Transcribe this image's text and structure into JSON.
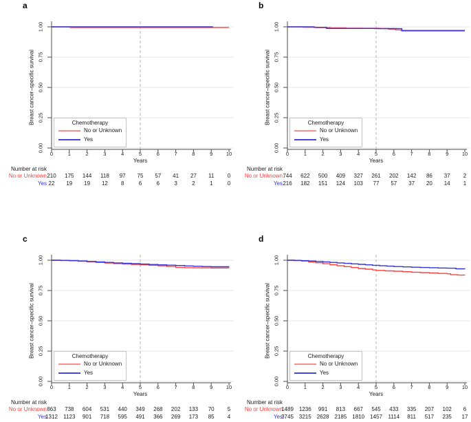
{
  "figure_title": "",
  "accent_colors": {
    "red": "#FF4040",
    "blue": "#3232DC",
    "grid": "#e4e4e4",
    "axis": "#4d4d4d",
    "dashed": "#b5b5b5"
  },
  "chart_data": [
    {
      "type": "line",
      "panel_label": "a",
      "xlabel": "Years",
      "ylabel": "Breast cancer–specific survival",
      "xlim": [
        0,
        10
      ],
      "ylim": [
        0,
        1
      ],
      "xticks": [
        0,
        1,
        2,
        3,
        4,
        5,
        6,
        7,
        8,
        9,
        10
      ],
      "ytick_values": [
        1.0,
        0.75,
        0.5,
        0.25,
        0.0
      ],
      "ytick_labels": [
        "1.00",
        "0.75",
        "0.50",
        "0.25",
        "0.00"
      ],
      "grid": "horizontal",
      "reference_line_x": 5,
      "legend": {
        "title": "Chemotherapy",
        "position": "inside-bottom-left"
      },
      "series": [
        {
          "name": "No or Unknown",
          "color": "#FF4040",
          "legend_color": "#FF8C8C",
          "step": true,
          "points": [
            [
              0,
              1
            ],
            [
              1.05,
              0.995
            ],
            [
              10,
              0.995
            ]
          ]
        },
        {
          "name": "Yes",
          "color": "#3232DC",
          "legend_color": "#4545E0",
          "step": true,
          "points": [
            [
              0,
              1
            ],
            [
              9.1,
              1
            ]
          ]
        }
      ],
      "number_at_risk": {
        "header": "Number at risk",
        "times": [
          0,
          1,
          2,
          3,
          4,
          5,
          6,
          7,
          8,
          9,
          10
        ],
        "rows": [
          {
            "label": "No or Unknown",
            "color": "#FF4040",
            "values": [
              210,
              175,
              144,
              118,
              97,
              75,
              57,
              41,
              27,
              11,
              0
            ]
          },
          {
            "label": "Yes",
            "color": "#3232DC",
            "values": [
              22,
              19,
              19,
              12,
              8,
              6,
              6,
              3,
              2,
              1,
              0
            ]
          }
        ]
      }
    },
    {
      "type": "line",
      "panel_label": "b",
      "xlabel": "Years",
      "ylabel": "Breast cancer–specific survival",
      "xlim": [
        0,
        10
      ],
      "ylim": [
        0,
        1
      ],
      "xticks": [
        0,
        1,
        2,
        3,
        4,
        5,
        6,
        7,
        8,
        9,
        10
      ],
      "ytick_values": [
        1.0,
        0.75,
        0.5,
        0.25,
        0.0
      ],
      "ytick_labels": [
        "1.00",
        "0.75",
        "0.50",
        "0.25",
        "0.00"
      ],
      "grid": "horizontal",
      "reference_line_x": 5,
      "legend": {
        "title": "Chemotherapy",
        "position": "inside-bottom-left"
      },
      "series": [
        {
          "name": "No or Unknown",
          "color": "#FF4040",
          "legend_color": "#FF8C8C",
          "step": true,
          "points": [
            [
              0,
              1
            ],
            [
              0.9,
              0.997
            ],
            [
              1.6,
              0.994
            ],
            [
              2.4,
              0.991
            ],
            [
              3.3,
              0.989
            ],
            [
              4.2,
              0.988
            ],
            [
              5.2,
              0.986
            ],
            [
              5.7,
              0.981
            ],
            [
              6.1,
              0.975
            ],
            [
              6.4,
              0.971
            ],
            [
              10,
              0.971
            ]
          ]
        },
        {
          "name": "Yes",
          "color": "#3232DC",
          "legend_color": "#4545E0",
          "step": true,
          "points": [
            [
              0,
              1
            ],
            [
              1.5,
              0.996
            ],
            [
              2.2,
              0.987
            ],
            [
              4.9,
              0.986
            ],
            [
              6.2,
              0.985
            ],
            [
              6.45,
              0.967
            ],
            [
              10,
              0.967
            ]
          ]
        }
      ],
      "number_at_risk": {
        "header": "Number at risk",
        "times": [
          0,
          1,
          2,
          3,
          4,
          5,
          6,
          7,
          8,
          9,
          10
        ],
        "rows": [
          {
            "label": "No or Unknown",
            "color": "#FF4040",
            "values": [
              744,
              622,
              500,
              409,
              327,
              261,
              202,
              142,
              86,
              37,
              2
            ]
          },
          {
            "label": "Yes",
            "color": "#3232DC",
            "values": [
              216,
              182,
              151,
              124,
              103,
              77,
              57,
              37,
              20,
              14,
              1
            ]
          }
        ]
      }
    },
    {
      "type": "line",
      "panel_label": "c",
      "xlabel": "Years",
      "ylabel": "Breast cancer–specific survival",
      "xlim": [
        0,
        10
      ],
      "ylim": [
        0,
        1
      ],
      "xticks": [
        0,
        1,
        2,
        3,
        4,
        5,
        6,
        7,
        8,
        9,
        10
      ],
      "ytick_values": [
        1.0,
        0.75,
        0.5,
        0.25,
        0.0
      ],
      "ytick_labels": [
        "1.00",
        "0.75",
        "0.50",
        "0.25",
        "0.00"
      ],
      "grid": "horizontal",
      "reference_line_x": 5,
      "legend": {
        "title": "Chemotherapy",
        "position": "inside-bottom-left"
      },
      "series": [
        {
          "name": "No or Unknown",
          "color": "#FF4040",
          "legend_color": "#FF8C8C",
          "step": true,
          "points": [
            [
              0,
              1
            ],
            [
              0.5,
              0.998
            ],
            [
              1,
              0.996
            ],
            [
              1.5,
              0.992
            ],
            [
              2,
              0.987
            ],
            [
              2.5,
              0.982
            ],
            [
              3,
              0.977
            ],
            [
              3.5,
              0.972
            ],
            [
              4,
              0.969
            ],
            [
              4.5,
              0.965
            ],
            [
              5,
              0.962
            ],
            [
              5.5,
              0.958
            ],
            [
              6,
              0.954
            ],
            [
              6.5,
              0.948
            ],
            [
              7,
              0.941
            ],
            [
              7.5,
              0.938
            ],
            [
              8,
              0.937
            ],
            [
              9,
              0.936
            ],
            [
              10,
              0.935
            ]
          ]
        },
        {
          "name": "Yes",
          "color": "#3232DC",
          "legend_color": "#4545E0",
          "step": true,
          "points": [
            [
              0,
              1
            ],
            [
              0.5,
              0.999
            ],
            [
              1,
              0.997
            ],
            [
              1.5,
              0.994
            ],
            [
              2,
              0.99
            ],
            [
              2.5,
              0.986
            ],
            [
              3,
              0.982
            ],
            [
              3.5,
              0.978
            ],
            [
              4,
              0.975
            ],
            [
              4.5,
              0.972
            ],
            [
              5,
              0.968
            ],
            [
              5.5,
              0.965
            ],
            [
              6,
              0.962
            ],
            [
              6.5,
              0.959
            ],
            [
              7,
              0.956
            ],
            [
              7.5,
              0.953
            ],
            [
              8,
              0.95
            ],
            [
              8.5,
              0.948
            ],
            [
              9,
              0.946
            ],
            [
              10,
              0.945
            ]
          ]
        }
      ],
      "number_at_risk": {
        "header": "Number at risk",
        "times": [
          0,
          1,
          2,
          3,
          4,
          5,
          6,
          7,
          8,
          9,
          10
        ],
        "rows": [
          {
            "label": "No or Unknown",
            "color": "#FF4040",
            "values": [
              863,
              738,
              604,
              531,
              440,
              349,
              268,
              202,
              133,
              70,
              5
            ]
          },
          {
            "label": "Yes",
            "color": "#3232DC",
            "values": [
              1312,
              1123,
              901,
              718,
              595,
              491,
              366,
              269,
              173,
              85,
              4
            ]
          }
        ]
      }
    },
    {
      "type": "line",
      "panel_label": "d",
      "xlabel": "Years",
      "ylabel": "Breast cancer–specific survival",
      "xlim": [
        0,
        10
      ],
      "ylim": [
        0,
        1
      ],
      "xticks": [
        0,
        1,
        2,
        3,
        4,
        5,
        6,
        7,
        8,
        9,
        10
      ],
      "ytick_values": [
        1.0,
        0.75,
        0.5,
        0.25,
        0.0
      ],
      "ytick_labels": [
        "1.00",
        "0.75",
        "0.50",
        "0.25",
        "0.00"
      ],
      "grid": "horizontal",
      "reference_line_x": 5,
      "legend": {
        "title": "Chemotherapy",
        "position": "inside-bottom-left"
      },
      "series": [
        {
          "name": "No or Unknown",
          "color": "#FF4040",
          "legend_color": "#FF8C8C",
          "step": true,
          "points": [
            [
              0,
              1
            ],
            [
              0.4,
              0.997
            ],
            [
              0.8,
              0.993
            ],
            [
              1.2,
              0.986
            ],
            [
              1.6,
              0.979
            ],
            [
              2,
              0.971
            ],
            [
              2.4,
              0.963
            ],
            [
              2.8,
              0.955
            ],
            [
              3.2,
              0.947
            ],
            [
              3.6,
              0.94
            ],
            [
              4,
              0.932
            ],
            [
              4.4,
              0.926
            ],
            [
              4.8,
              0.92
            ],
            [
              5,
              0.916
            ],
            [
              5.5,
              0.912
            ],
            [
              6,
              0.909
            ],
            [
              6.5,
              0.905
            ],
            [
              7,
              0.901
            ],
            [
              7.5,
              0.898
            ],
            [
              8,
              0.895
            ],
            [
              8.5,
              0.891
            ],
            [
              9,
              0.888
            ],
            [
              9.2,
              0.88
            ],
            [
              9.6,
              0.877
            ],
            [
              10,
              0.876
            ]
          ]
        },
        {
          "name": "Yes",
          "color": "#3232DC",
          "legend_color": "#4545E0",
          "step": true,
          "points": [
            [
              0,
              1
            ],
            [
              0.4,
              0.999
            ],
            [
              0.8,
              0.996
            ],
            [
              1.2,
              0.993
            ],
            [
              1.6,
              0.99
            ],
            [
              2,
              0.986
            ],
            [
              2.4,
              0.982
            ],
            [
              2.8,
              0.978
            ],
            [
              3.2,
              0.974
            ],
            [
              3.6,
              0.97
            ],
            [
              4,
              0.966
            ],
            [
              4.4,
              0.962
            ],
            [
              4.8,
              0.958
            ],
            [
              5.2,
              0.954
            ],
            [
              5.6,
              0.951
            ],
            [
              6,
              0.948
            ],
            [
              6.5,
              0.945
            ],
            [
              7,
              0.942
            ],
            [
              7.5,
              0.94
            ],
            [
              8,
              0.938
            ],
            [
              8.5,
              0.936
            ],
            [
              9,
              0.934
            ],
            [
              9.5,
              0.929
            ],
            [
              10,
              0.927
            ]
          ]
        }
      ],
      "number_at_risk": {
        "header": "Number at risk",
        "times": [
          0,
          1,
          2,
          3,
          4,
          5,
          6,
          7,
          8,
          9,
          10
        ],
        "rows": [
          {
            "label": "No or Unknown",
            "color": "#FF4040",
            "values": [
              1489,
              1236,
              991,
              813,
              667,
              545,
              433,
              335,
              207,
              102,
              6
            ]
          },
          {
            "label": "Yes",
            "color": "#3232DC",
            "values": [
              3745,
              3215,
              2628,
              2185,
              1810,
              1457,
              1114,
              811,
              517,
              235,
              17
            ]
          }
        ]
      }
    }
  ]
}
